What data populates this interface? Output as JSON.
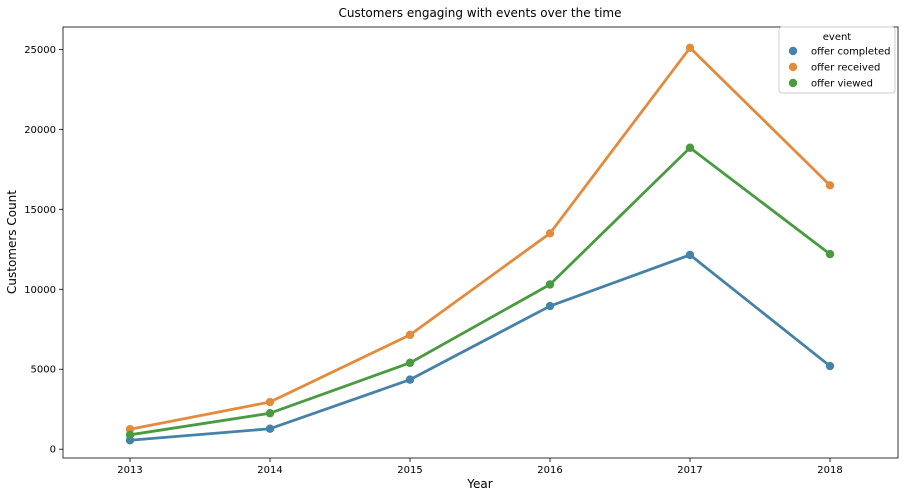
{
  "chart_data": {
    "type": "line",
    "title": "Customers engaging with events over the time",
    "xlabel": "Year",
    "ylabel": "Customers Count",
    "categories": [
      "2013",
      "2014",
      "2015",
      "2016",
      "2017",
      "2018"
    ],
    "y_ticks": [
      0,
      5000,
      10000,
      15000,
      20000,
      25000
    ],
    "ylim": [
      -550,
      26400
    ],
    "grid": false,
    "legend": {
      "title": "event",
      "placement": "top-right"
    },
    "series": [
      {
        "name": "offer completed",
        "color": "#4682a8",
        "values": [
          560,
          1280,
          4350,
          8950,
          12150,
          5200
        ]
      },
      {
        "name": "offer received",
        "color": "#e28b3c",
        "values": [
          1250,
          2950,
          7150,
          13500,
          25100,
          16500
        ]
      },
      {
        "name": "offer viewed",
        "color": "#4a9a41",
        "values": [
          900,
          2250,
          5400,
          10300,
          18850,
          12200
        ]
      }
    ]
  }
}
